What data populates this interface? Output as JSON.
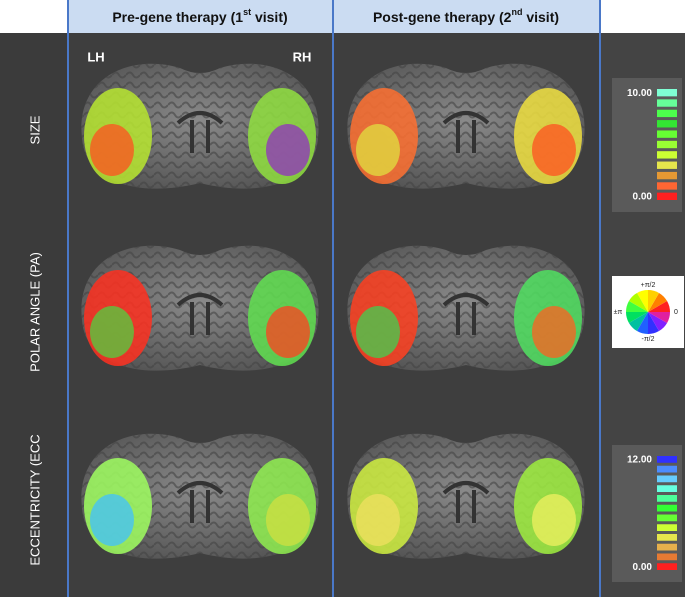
{
  "header": {
    "columns": [
      {
        "prefix": "Pre-gene therapy (1",
        "sup": "st",
        "suffix": " visit)"
      },
      {
        "prefix": "Post-gene therapy (2",
        "sup": "nd",
        "suffix": " visit)"
      }
    ]
  },
  "hemispheres": {
    "left": "LH",
    "right": "RH"
  },
  "rows": [
    "SIZE",
    "POLAR ANGLE (PA)",
    "ECCENTRICITY (ECC"
  ],
  "legends": {
    "size": {
      "top_label": "10.00",
      "bottom_label": "0.00",
      "colors": [
        "#7fffd4",
        "#66ff99",
        "#4cff4c",
        "#33e633",
        "#66ff33",
        "#99ff33",
        "#ccff33",
        "#e6e64c",
        "#e69933",
        "#ff6633",
        "#ff2020"
      ]
    },
    "polar_angle": {
      "top": "+π/2",
      "left": "±π",
      "right": "0",
      "bottom": "-π/2",
      "colors": [
        "#ff2020",
        "#ff8000",
        "#ffd000",
        "#ffff00",
        "#b0ff00",
        "#40ff40",
        "#00e060",
        "#00c0a0",
        "#2060ff",
        "#3030ff",
        "#8020ff",
        "#e020a0"
      ]
    },
    "eccentricity": {
      "top_label": "12.00",
      "bottom_label": "0.00",
      "colors": [
        "#3030ff",
        "#4c8cff",
        "#66ccff",
        "#66ffe0",
        "#4cff99",
        "#33ff33",
        "#66ff33",
        "#ccff33",
        "#e6e64c",
        "#e6b04c",
        "#e67a33",
        "#ff2020"
      ]
    }
  }
}
